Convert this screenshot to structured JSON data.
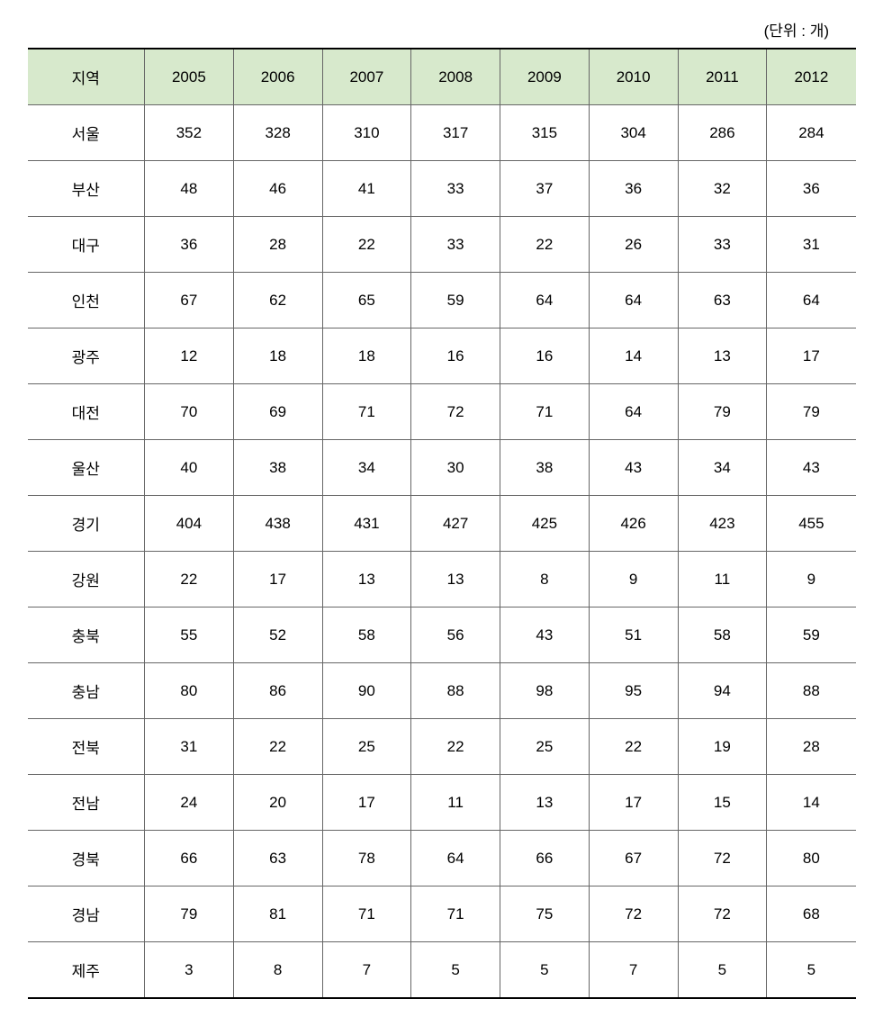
{
  "unit_label": "(단위 : 개)",
  "columns": [
    "지역",
    "2005",
    "2006",
    "2007",
    "2008",
    "2009",
    "2010",
    "2011",
    "2012"
  ],
  "rows": [
    {
      "region": "서울",
      "y2005": "352",
      "y2006": "328",
      "y2007": "310",
      "y2008": "317",
      "y2009": "315",
      "y2010": "304",
      "y2011": "286",
      "y2012": "284"
    },
    {
      "region": "부산",
      "y2005": "48",
      "y2006": "46",
      "y2007": "41",
      "y2008": "33",
      "y2009": "37",
      "y2010": "36",
      "y2011": "32",
      "y2012": "36"
    },
    {
      "region": "대구",
      "y2005": "36",
      "y2006": "28",
      "y2007": "22",
      "y2008": "33",
      "y2009": "22",
      "y2010": "26",
      "y2011": "33",
      "y2012": "31"
    },
    {
      "region": "인천",
      "y2005": "67",
      "y2006": "62",
      "y2007": "65",
      "y2008": "59",
      "y2009": "64",
      "y2010": "64",
      "y2011": "63",
      "y2012": "64"
    },
    {
      "region": "광주",
      "y2005": "12",
      "y2006": "18",
      "y2007": "18",
      "y2008": "16",
      "y2009": "16",
      "y2010": "14",
      "y2011": "13",
      "y2012": "17"
    },
    {
      "region": "대전",
      "y2005": "70",
      "y2006": "69",
      "y2007": "71",
      "y2008": "72",
      "y2009": "71",
      "y2010": "64",
      "y2011": "79",
      "y2012": "79"
    },
    {
      "region": "울산",
      "y2005": "40",
      "y2006": "38",
      "y2007": "34",
      "y2008": "30",
      "y2009": "38",
      "y2010": "43",
      "y2011": "34",
      "y2012": "43"
    },
    {
      "region": "경기",
      "y2005": "404",
      "y2006": "438",
      "y2007": "431",
      "y2008": "427",
      "y2009": "425",
      "y2010": "426",
      "y2011": "423",
      "y2012": "455"
    },
    {
      "region": "강원",
      "y2005": "22",
      "y2006": "17",
      "y2007": "13",
      "y2008": "13",
      "y2009": "8",
      "y2010": "9",
      "y2011": "11",
      "y2012": "9"
    },
    {
      "region": "충북",
      "y2005": "55",
      "y2006": "52",
      "y2007": "58",
      "y2008": "56",
      "y2009": "43",
      "y2010": "51",
      "y2011": "58",
      "y2012": "59"
    },
    {
      "region": "충남",
      "y2005": "80",
      "y2006": "86",
      "y2007": "90",
      "y2008": "88",
      "y2009": "98",
      "y2010": "95",
      "y2011": "94",
      "y2012": "88"
    },
    {
      "region": "전북",
      "y2005": "31",
      "y2006": "22",
      "y2007": "25",
      "y2008": "22",
      "y2009": "25",
      "y2010": "22",
      "y2011": "19",
      "y2012": "28"
    },
    {
      "region": "전남",
      "y2005": "24",
      "y2006": "20",
      "y2007": "17",
      "y2008": "11",
      "y2009": "13",
      "y2010": "17",
      "y2011": "15",
      "y2012": "14"
    },
    {
      "region": "경북",
      "y2005": "66",
      "y2006": "63",
      "y2007": "78",
      "y2008": "64",
      "y2009": "66",
      "y2010": "67",
      "y2011": "72",
      "y2012": "80"
    },
    {
      "region": "경남",
      "y2005": "79",
      "y2006": "81",
      "y2007": "71",
      "y2008": "71",
      "y2009": "75",
      "y2010": "72",
      "y2011": "72",
      "y2012": "68"
    },
    {
      "region": "제주",
      "y2005": "3",
      "y2006": "8",
      "y2007": "7",
      "y2008": "5",
      "y2009": "5",
      "y2010": "7",
      "y2011": "5",
      "y2012": "5"
    }
  ],
  "style": {
    "type": "table",
    "header_bg": "#d7e9cc",
    "header_fontsize": 17,
    "cell_fontsize": 17,
    "border_color": "#666666",
    "outer_border_color": "#000000",
    "outer_border_width": 2,
    "inner_border_width": 1,
    "text_color": "#000000",
    "background_color": "#ffffff",
    "font_family": "Malgun Gothic",
    "region_col_width": 130,
    "row_padding": 18,
    "alignment": "center"
  }
}
